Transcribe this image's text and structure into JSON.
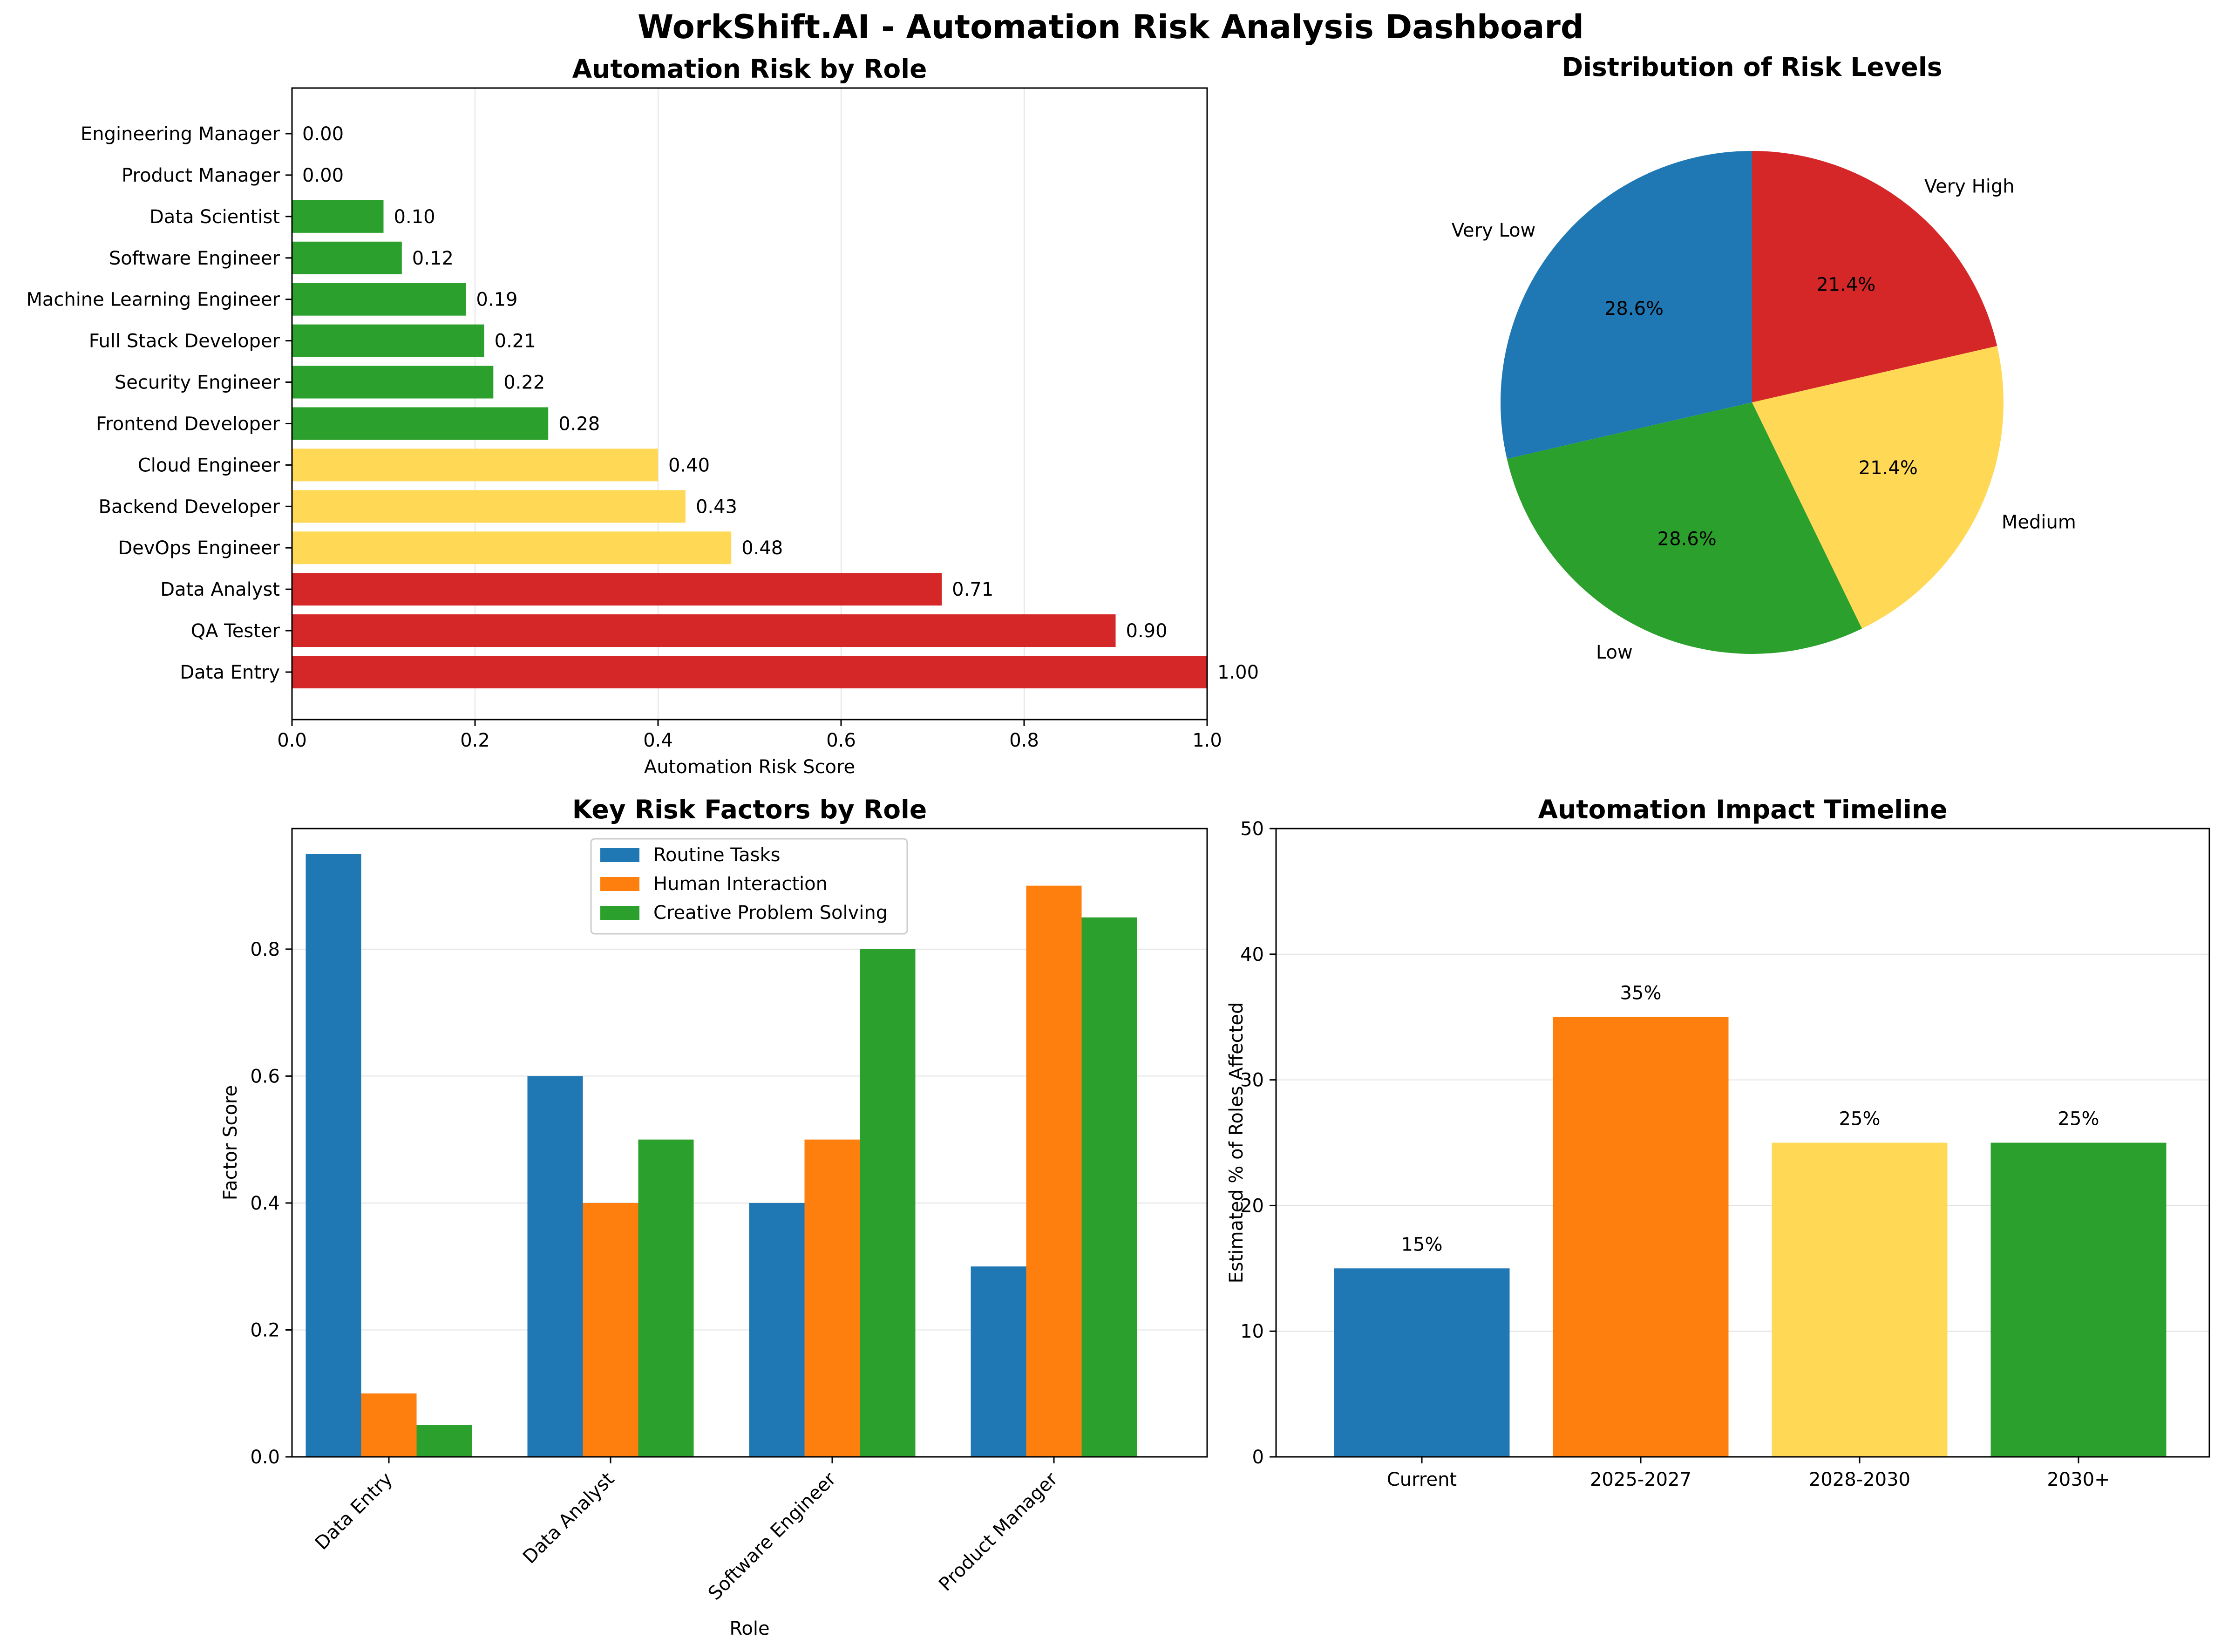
{
  "title": "WorkShift.AI - Automation Risk Analysis Dashboard",
  "colors": {
    "red": "#d62728",
    "yellow": "#ffd955",
    "green": "#2ca02c",
    "blue": "#1f77b4",
    "orange": "#ff7f0e",
    "grid": "#e0e0e0"
  },
  "chart_data": [
    {
      "type": "bar",
      "orientation": "horizontal",
      "title": "Automation Risk by Role",
      "xlabel": "Automation Risk Score",
      "ylabel": "",
      "xlim": [
        0,
        1
      ],
      "xticks": [
        "0.0",
        "0.2",
        "0.4",
        "0.6",
        "0.8",
        "1.0"
      ],
      "grid": "x",
      "categories": [
        "Engineering Manager",
        "Product Manager",
        "Data Scientist",
        "Software Engineer",
        "Machine Learning Engineer",
        "Full Stack Developer",
        "Security Engineer",
        "Frontend Developer",
        "Cloud Engineer",
        "Backend Developer",
        "DevOps Engineer",
        "Data Analyst",
        "QA Tester",
        "Data Entry"
      ],
      "values": [
        0.0,
        0.0,
        0.1,
        0.12,
        0.19,
        0.21,
        0.22,
        0.28,
        0.4,
        0.43,
        0.48,
        0.71,
        0.9,
        1.0
      ],
      "value_labels": [
        "0.00",
        "0.00",
        "0.10",
        "0.12",
        "0.19",
        "0.21",
        "0.22",
        "0.28",
        "0.40",
        "0.43",
        "0.48",
        "0.71",
        "0.90",
        "1.00"
      ],
      "bar_colors": [
        "green",
        "green",
        "green",
        "green",
        "green",
        "green",
        "green",
        "green",
        "yellow",
        "yellow",
        "yellow",
        "red",
        "red",
        "red"
      ]
    },
    {
      "type": "pie",
      "title": "Distribution of Risk Levels",
      "labels": [
        "Very High",
        "Medium",
        "Low",
        "Very Low"
      ],
      "values": [
        21.4,
        21.4,
        28.6,
        28.6
      ],
      "pct_labels": [
        "21.4%",
        "21.4%",
        "28.6%",
        "28.6%"
      ],
      "slice_colors": [
        "red",
        "yellow",
        "green",
        "blue"
      ],
      "start_angle": 90,
      "direction": "clockwise"
    },
    {
      "type": "bar",
      "orientation": "vertical",
      "grouped": true,
      "title": "Key Risk Factors by Role",
      "xlabel": "Role",
      "ylabel": "Factor Score",
      "ylim": [
        0,
        1.0
      ],
      "yticks": [
        "0.0",
        "0.2",
        "0.4",
        "0.6",
        "0.8"
      ],
      "grid": "y",
      "legend": "top-center",
      "categories": [
        "Data Entry",
        "Data Analyst",
        "Software Engineer",
        "Product Manager"
      ],
      "series": [
        {
          "name": "Routine Tasks",
          "color": "blue",
          "values": [
            0.95,
            0.6,
            0.4,
            0.3
          ]
        },
        {
          "name": "Human Interaction",
          "color": "orange",
          "values": [
            0.1,
            0.4,
            0.5,
            0.9
          ]
        },
        {
          "name": "Creative Problem Solving",
          "color": "green",
          "values": [
            0.05,
            0.5,
            0.8,
            0.85
          ]
        }
      ]
    },
    {
      "type": "bar",
      "orientation": "vertical",
      "title": "Automation Impact Timeline",
      "xlabel": "",
      "ylabel": "Estimated % of Roles Affected",
      "ylim": [
        0,
        50
      ],
      "yticks": [
        "0",
        "10",
        "20",
        "30",
        "40",
        "50"
      ],
      "grid": "y",
      "categories": [
        "Current",
        "2025-2027",
        "2028-2030",
        "2030+"
      ],
      "values": [
        15,
        35,
        25,
        25
      ],
      "value_labels": [
        "15%",
        "35%",
        "25%",
        "25%"
      ],
      "bar_colors": [
        "blue",
        "orange",
        "yellow",
        "green"
      ]
    }
  ]
}
